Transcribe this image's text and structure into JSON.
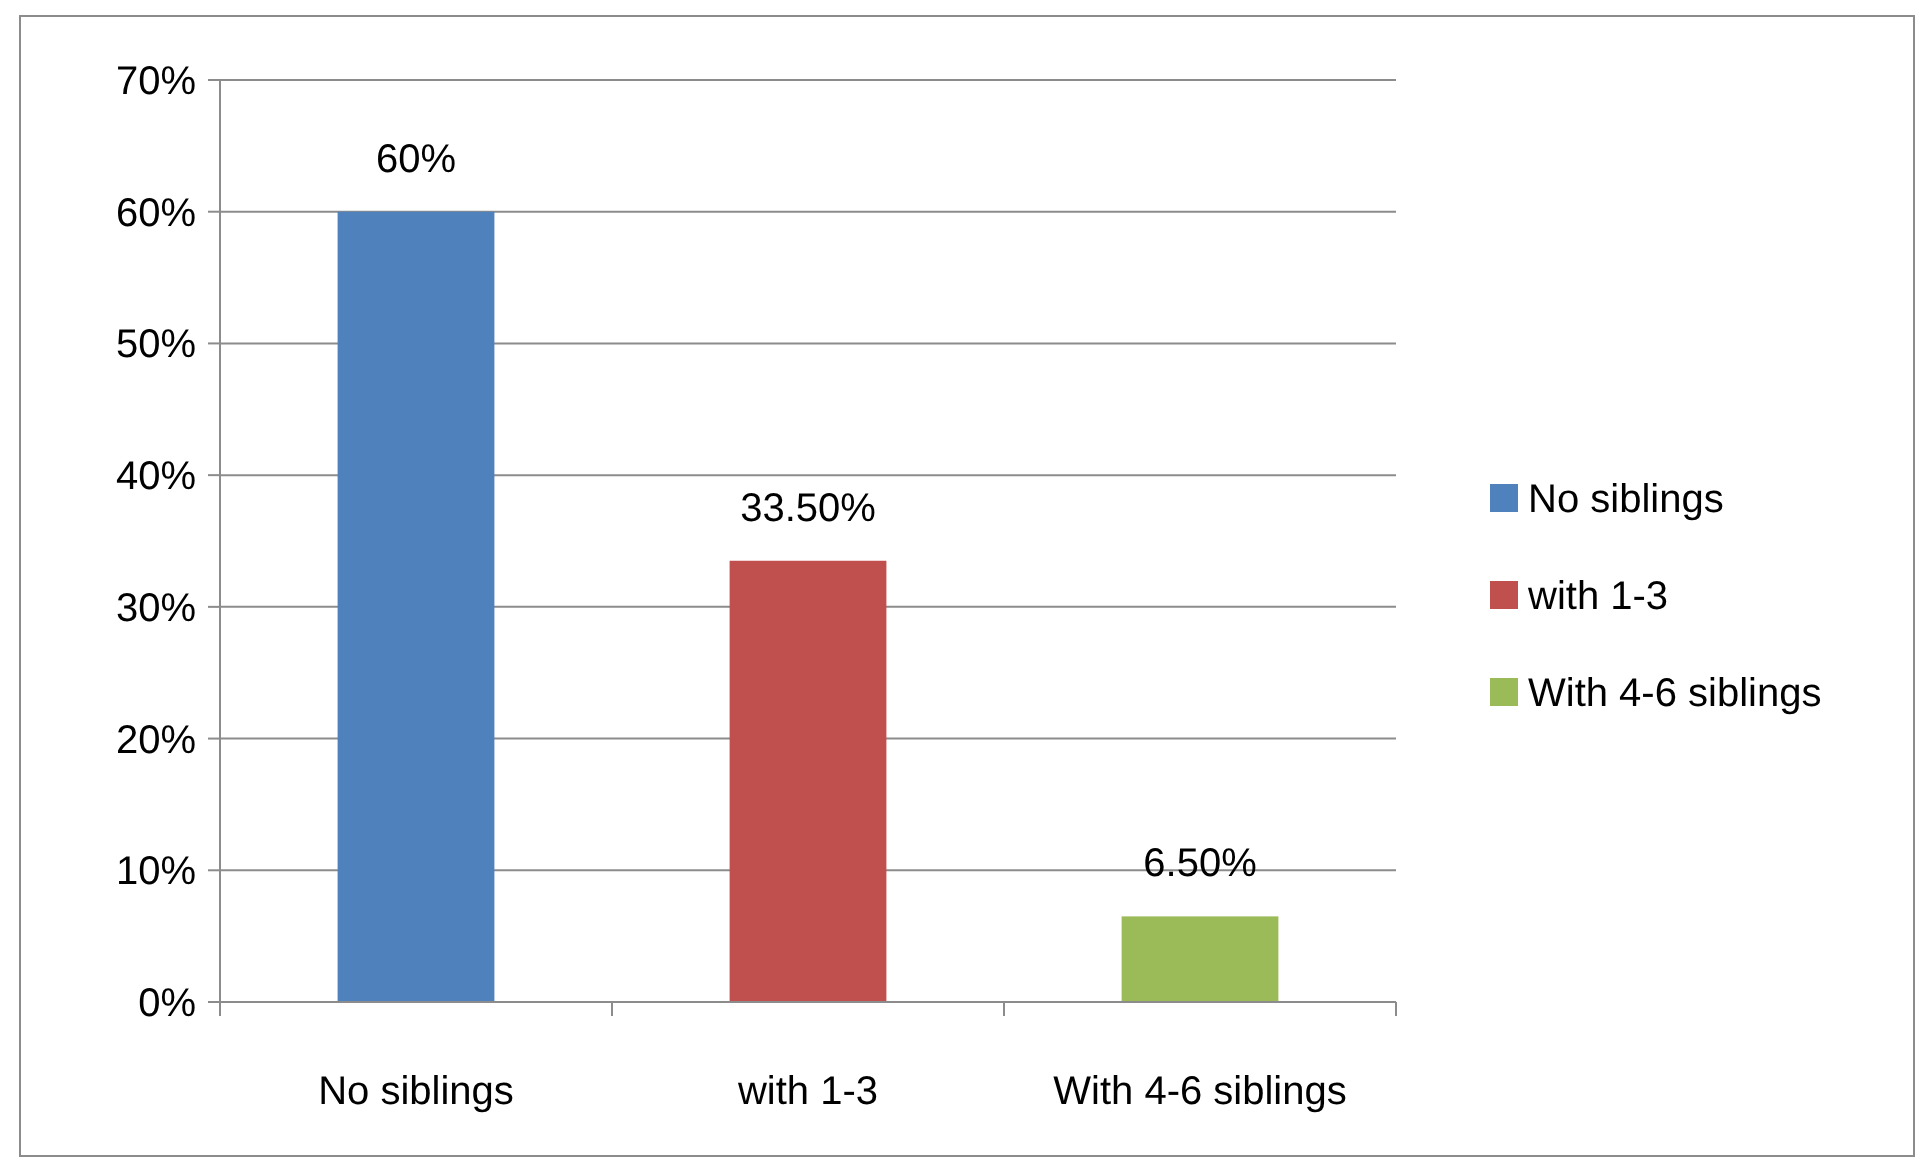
{
  "chart_data": {
    "type": "bar",
    "categories": [
      "No siblings",
      "with 1-3",
      "With 4-6 siblings"
    ],
    "stacked": true,
    "series": [
      {
        "name": "No siblings",
        "color": "#4f81bd",
        "values": [
          60,
          null,
          null
        ],
        "value_labels": [
          "60%",
          null,
          null
        ]
      },
      {
        "name": "with 1-3",
        "color": "#c0504d",
        "values": [
          null,
          33.5,
          null
        ],
        "value_labels": [
          null,
          "33.50%",
          null
        ]
      },
      {
        "name": "With 4-6 siblings",
        "color": "#9bbb59",
        "values": [
          null,
          null,
          6.5
        ],
        "value_labels": [
          null,
          null,
          "6.50%"
        ]
      }
    ],
    "ylim": [
      0,
      70
    ],
    "yticks": [
      {
        "value": 0,
        "label": "0%"
      },
      {
        "value": 10,
        "label": "10%"
      },
      {
        "value": 20,
        "label": "20%"
      },
      {
        "value": 30,
        "label": "30%"
      },
      {
        "value": 40,
        "label": "40%"
      },
      {
        "value": 50,
        "label": "50%"
      },
      {
        "value": 60,
        "label": "60%"
      },
      {
        "value": 70,
        "label": "70%"
      }
    ],
    "grid": "y",
    "legend": "right"
  }
}
